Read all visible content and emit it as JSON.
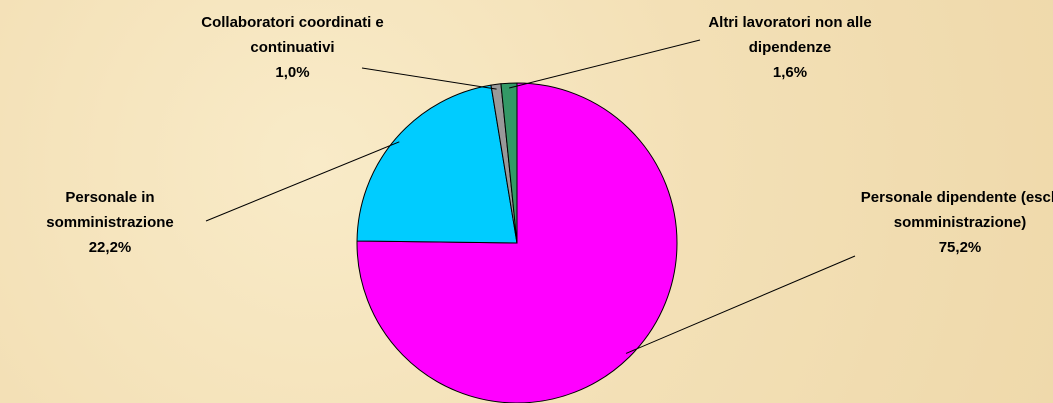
{
  "chart_data": {
    "type": "pie",
    "categories": [
      "Personale dipendente (escl. somministrazione)",
      "Personale in somministrazione",
      "Collaboratori coordinati e continuativi",
      "Altri lavoratori non alle dipendenze"
    ],
    "values": [
      75.2,
      22.2,
      1.0,
      1.6
    ],
    "value_labels": [
      "75,2%",
      "22,2%",
      "1,0%",
      "1,6%"
    ],
    "colors": [
      "#ff00ff",
      "#00ccff",
      "#999999",
      "#339966"
    ]
  }
}
